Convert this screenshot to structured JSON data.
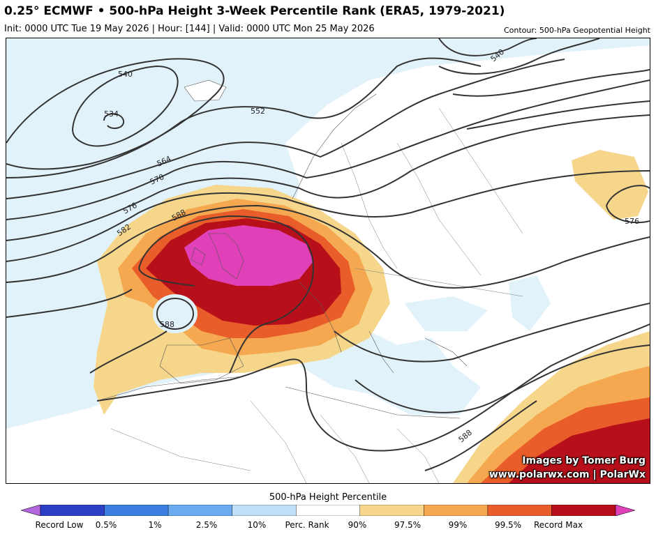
{
  "header": {
    "title": "0.25° ECMWF • 500-hPa Height 3-Week Percentile Rank (ERA5, 1979-2021)",
    "subtitle": "Init: 0000 UTC Tue 19 May 2026 | Hour: [144] | Valid: 0000 UTC Mon 25 May 2026",
    "contour_label": "Contour: 500-hPa Geopotential Height"
  },
  "map": {
    "contour_values": [
      "540",
      "534",
      "552",
      "564",
      "570",
      "576",
      "582",
      "588",
      "588",
      "540",
      "576",
      "588"
    ],
    "credit_line1": "Images by Tomer Burg",
    "credit_line2": "www.polarwx.com | PolarWx"
  },
  "colorbar": {
    "title": "500-hPa Height Percentile",
    "labels": [
      "Record Low",
      "0.5%",
      "1%",
      "2.5%",
      "10%",
      "Perc. Rank",
      "90%",
      "97.5%",
      "99%",
      "99.5%",
      "Record Max"
    ],
    "colors": [
      "#b366e0",
      "#2b3fc4",
      "#3d7fe0",
      "#6aaaf0",
      "#bfe0f7",
      "#ffffff",
      "#f5d68a",
      "#f5a850",
      "#e85d2a",
      "#b8101a",
      "#e040b8"
    ]
  }
}
